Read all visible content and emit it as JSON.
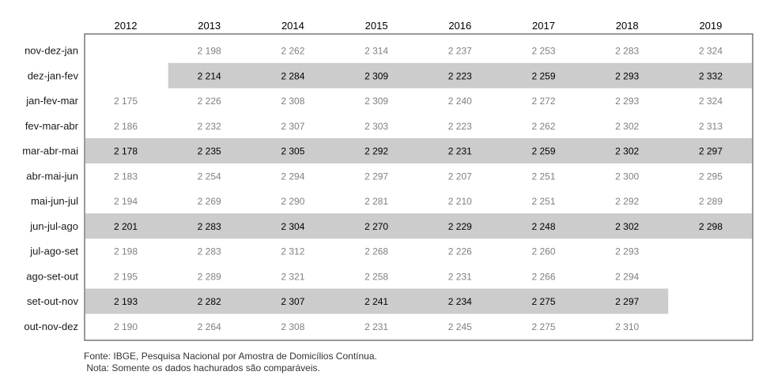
{
  "chart_data": {
    "type": "table",
    "columns": [
      "2012",
      "2013",
      "2014",
      "2015",
      "2016",
      "2017",
      "2018",
      "2019"
    ],
    "rows": [
      {
        "label": "nov-dez-jan",
        "highlight": false,
        "values": [
          "",
          "2 198",
          "2 262",
          "2 314",
          "2 237",
          "2 253",
          "2 283",
          "2 324"
        ]
      },
      {
        "label": "dez-jan-fev",
        "highlight": true,
        "values": [
          "",
          "2 214",
          "2 284",
          "2 309",
          "2 223",
          "2 259",
          "2 293",
          "2 332"
        ]
      },
      {
        "label": "jan-fev-mar",
        "highlight": false,
        "values": [
          "2 175",
          "2 226",
          "2 308",
          "2 309",
          "2 240",
          "2 272",
          "2 293",
          "2 324"
        ]
      },
      {
        "label": "fev-mar-abr",
        "highlight": false,
        "values": [
          "2 186",
          "2 232",
          "2 307",
          "2 303",
          "2 223",
          "2 262",
          "2 302",
          "2 313"
        ]
      },
      {
        "label": "mar-abr-mai",
        "highlight": true,
        "values": [
          "2 178",
          "2 235",
          "2 305",
          "2 292",
          "2 231",
          "2 259",
          "2 302",
          "2 297"
        ]
      },
      {
        "label": "abr-mai-jun",
        "highlight": false,
        "values": [
          "2 183",
          "2 254",
          "2 294",
          "2 297",
          "2 207",
          "2 251",
          "2 300",
          "2 295"
        ]
      },
      {
        "label": "mai-jun-jul",
        "highlight": false,
        "values": [
          "2 194",
          "2 269",
          "2 290",
          "2 281",
          "2 210",
          "2 251",
          "2 292",
          "2 289"
        ]
      },
      {
        "label": "jun-jul-ago",
        "highlight": true,
        "values": [
          "2 201",
          "2 283",
          "2 304",
          "2 270",
          "2 229",
          "2 248",
          "2 302",
          "2 298"
        ]
      },
      {
        "label": "jul-ago-set",
        "highlight": false,
        "values": [
          "2 198",
          "2 283",
          "2 312",
          "2 268",
          "2 226",
          "2 260",
          "2 293",
          ""
        ]
      },
      {
        "label": "ago-set-out",
        "highlight": false,
        "values": [
          "2 195",
          "2 289",
          "2 321",
          "2 258",
          "2 231",
          "2 266",
          "2 294",
          ""
        ]
      },
      {
        "label": "set-out-nov",
        "highlight": true,
        "values": [
          "2 193",
          "2 282",
          "2 307",
          "2 241",
          "2 234",
          "2 275",
          "2 297",
          ""
        ]
      },
      {
        "label": "out-nov-dez",
        "highlight": false,
        "values": [
          "2 190",
          "2 264",
          "2 308",
          "2 231",
          "2 245",
          "2 275",
          "2 310",
          ""
        ]
      }
    ],
    "grid": false,
    "colors": {
      "highlight_band": "#cccccc",
      "highlight_text": "#000000",
      "normal_text": "#808080",
      "frame": "#333333"
    }
  },
  "footer": {
    "source": "Fonte: IBGE, Pesquisa Nacional por Amostra de Domicílios Contínua.",
    "note": " Nota: Somente os dados hachurados são comparáveis."
  }
}
